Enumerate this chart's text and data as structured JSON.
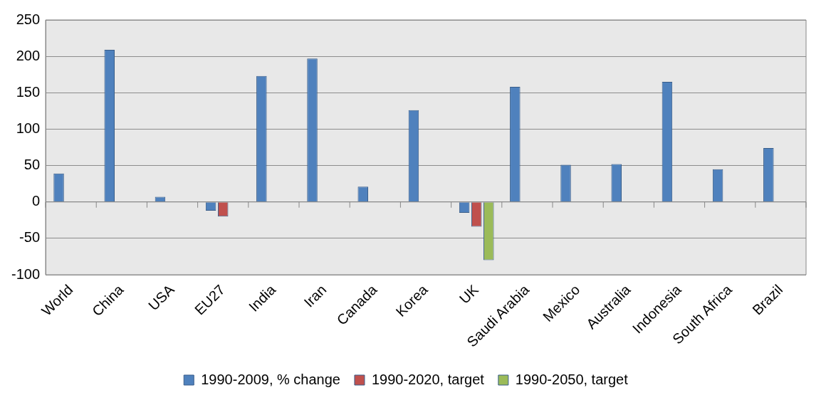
{
  "chart_data": {
    "type": "bar",
    "categories": [
      "World",
      "China",
      "USA",
      "EU27",
      "India",
      "Iran",
      "Canada",
      "Korea",
      "UK",
      "Saudi Arabia",
      "Mexico",
      "Australia",
      "Indonesia",
      "South Africa",
      "Brazil"
    ],
    "series": [
      {
        "name": "1990-2009, % change",
        "color": "#4f81bd",
        "values": [
          39,
          209,
          7,
          -12,
          173,
          197,
          21,
          126,
          -15,
          158,
          51,
          52,
          165,
          45,
          74
        ]
      },
      {
        "name": "1990-2020, target",
        "color": "#c0504d",
        "values": [
          null,
          null,
          null,
          -20,
          null,
          null,
          null,
          null,
          -34,
          null,
          null,
          null,
          null,
          null,
          null
        ]
      },
      {
        "name": "1990-2050, target",
        "color": "#9bbb59",
        "values": [
          null,
          null,
          null,
          null,
          null,
          null,
          null,
          null,
          -80,
          null,
          null,
          null,
          null,
          null,
          null
        ]
      }
    ],
    "ylim": [
      -100,
      250
    ],
    "yticks": [
      -100,
      -50,
      0,
      50,
      100,
      150,
      200,
      250
    ],
    "grid": "y",
    "legend": "bottom"
  }
}
